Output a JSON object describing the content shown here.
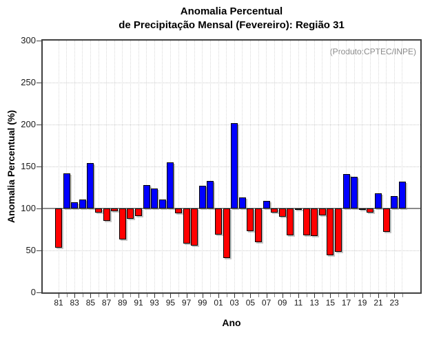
{
  "header": {
    "title_line1": "Anomalia Percentual",
    "title_line2": "de Precipitação Mensal (Fevereiro): Região 31",
    "annotation": "(Produto:CPTEC/INPE)"
  },
  "chart_data": {
    "type": "bar",
    "title": "Anomalia Percentual de Precipitação Mensal (Fevereiro): Região 31",
    "annotation": "(Produto:CPTEC/INPE)",
    "xlabel": "Ano",
    "ylabel": "Anomalia Percentual (%)",
    "ylim": [
      0,
      300
    ],
    "yticks": [
      0,
      50,
      100,
      150,
      200,
      250,
      300
    ],
    "baseline": 100,
    "grid": "dotted, vertical line every year, horizontal every 50",
    "legend": "none",
    "colors": {
      "above": "#0000ff",
      "below": "#ff0000"
    },
    "years": [
      1981,
      1982,
      1983,
      1984,
      1985,
      1986,
      1987,
      1988,
      1989,
      1990,
      1991,
      1992,
      1993,
      1994,
      1995,
      1996,
      1997,
      1998,
      1999,
      2000,
      2001,
      2002,
      2003,
      2004,
      2005,
      2006,
      2007,
      2008,
      2009,
      2010,
      2011,
      2012,
      2013,
      2014,
      2015,
      2016,
      2017,
      2018,
      2019,
      2020,
      2021,
      2022,
      2023,
      2024
    ],
    "values": [
      53,
      142,
      107,
      111,
      154,
      95,
      85,
      97,
      63,
      88,
      91,
      128,
      124,
      111,
      155,
      94,
      58,
      56,
      127,
      133,
      69,
      41,
      202,
      113,
      73,
      60,
      109,
      95,
      90,
      68,
      98,
      68,
      67,
      92,
      44,
      48,
      141,
      138,
      99,
      95,
      118,
      72,
      115,
      132
    ],
    "xtick_labels": [
      "81",
      "83",
      "85",
      "87",
      "89",
      "91",
      "93",
      "95",
      "97",
      "99",
      "01",
      "03",
      "05",
      "07",
      "09",
      "11",
      "13",
      "15",
      "17",
      "19",
      "21",
      "23"
    ]
  }
}
